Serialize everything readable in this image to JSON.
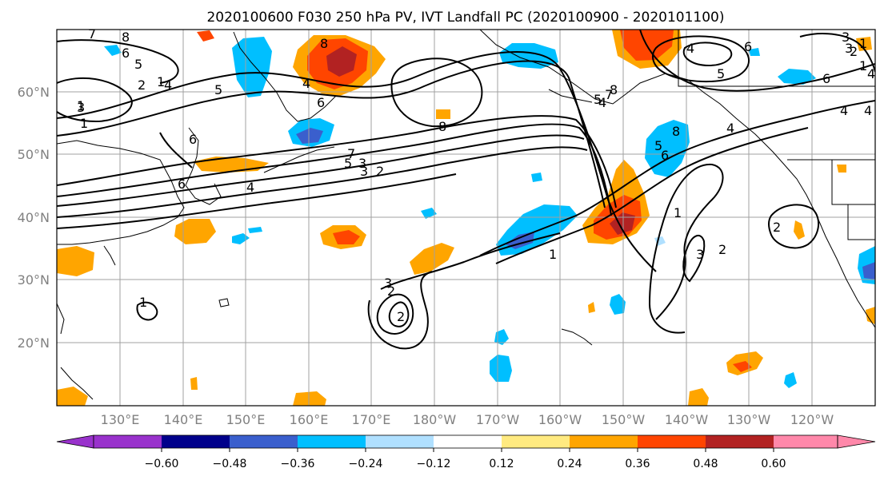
{
  "title": "2020100600 F030 250 hPa PV, IVT Landfall PC (2020100900 - 2020101100)",
  "longitude_labels": [
    "130°E",
    "140°E",
    "150°E",
    "160°E",
    "170°E",
    "180°W",
    "170°W",
    "160°W",
    "150°W",
    "140°W",
    "130°W",
    "120°W"
  ],
  "latitude_labels": [
    "60°N",
    "50°N",
    "40°N",
    "30°N",
    "20°N"
  ],
  "colorbar": {
    "colors": [
      "#9932cc",
      "#00008b",
      "#3a5fcd",
      "#00bfff",
      "#b0e0ff",
      "#ffffff",
      "#ffea80",
      "#ffa500",
      "#ff4500",
      "#b22222",
      "#ff88aa"
    ],
    "tick_labels": [
      "−0.60",
      "−0.48",
      "−0.36",
      "−0.24",
      "−0.12",
      "0.12",
      "0.24",
      "0.36",
      "0.48",
      "0.60"
    ]
  },
  "contour_labels": [
    "7",
    "8",
    "6",
    "5",
    "4",
    "3",
    "2",
    "1",
    "8",
    "4",
    "5",
    "6",
    "7",
    "8",
    "6",
    "4",
    "3",
    "2",
    "1",
    "6",
    "4",
    "7",
    "5",
    "3",
    "2",
    "1",
    "6",
    "8",
    "5",
    "4",
    "3",
    "2",
    "1",
    "1",
    "2",
    "3",
    "2",
    "4",
    "1",
    "1",
    "4",
    "2",
    "3",
    "5",
    "6",
    "8",
    "5",
    "4",
    "6",
    "3",
    "1",
    "4"
  ]
}
